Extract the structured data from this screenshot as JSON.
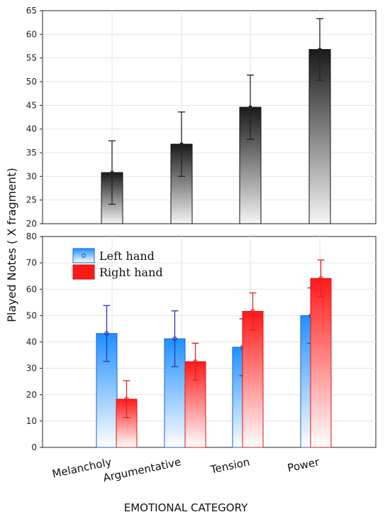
{
  "chart_data": [
    {
      "type": "bar",
      "categories": [
        "Melancholy",
        "Argumentative",
        "Tension",
        "Power"
      ],
      "values": [
        30.8,
        36.8,
        44.6,
        56.8
      ],
      "errors": [
        6.7,
        6.8,
        6.8,
        6.5
      ],
      "ylim": [
        20,
        65
      ],
      "yticks": [
        20,
        25,
        30,
        35,
        40,
        45,
        50,
        55,
        60,
        65
      ],
      "grid": true,
      "colors": {
        "bar_top": "#1a1a1a",
        "bar_bottom": "#f5f5f5",
        "edge": "#111111"
      }
    },
    {
      "type": "bar",
      "categories": [
        "Melancholy",
        "Argumentative",
        "Tension",
        "Power"
      ],
      "series": [
        {
          "name": "Left hand",
          "values": [
            43.2,
            41.2,
            38.0,
            50.0
          ],
          "errors": [
            10.6,
            10.6,
            10.8,
            10.5
          ],
          "color": "#1e90ff"
        },
        {
          "name": "Right hand",
          "values": [
            18.3,
            32.5,
            51.6,
            64.1
          ],
          "errors": [
            7.0,
            7.0,
            7.0,
            7.0
          ],
          "color": "#ff2020"
        }
      ],
      "ylim": [
        0,
        80
      ],
      "yticks": [
        0,
        10,
        20,
        30,
        40,
        50,
        60,
        70,
        80
      ],
      "grid": true,
      "legend": "top-left"
    }
  ],
  "ylabel": "Played Notes ( X fragment)",
  "xlabel": "EMOTIONAL CATEGORY"
}
